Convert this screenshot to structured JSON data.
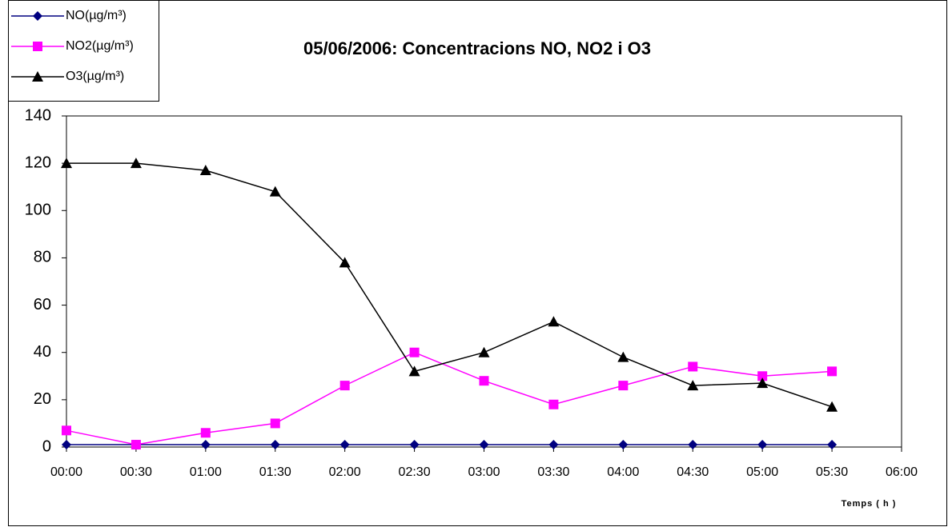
{
  "chart_data": {
    "type": "line",
    "title": "05/06/2006: Concentracions NO, NO2 i O3",
    "x_label": "Temps ( h )",
    "categories": [
      "00:00",
      "00:30",
      "01:00",
      "01:30",
      "02:00",
      "02:30",
      "03:00",
      "03:30",
      "04:00",
      "04:30",
      "05:00",
      "05:30",
      "06:00"
    ],
    "series": [
      {
        "name": "NO(µg/m³)",
        "color": "#000080",
        "marker": "diamond",
        "values": [
          1,
          1,
          1,
          1,
          1,
          1,
          1,
          1,
          1,
          1,
          1,
          1,
          null
        ]
      },
      {
        "name": "NO2(µg/m³)",
        "color": "#ff00ff",
        "marker": "square",
        "values": [
          7,
          1,
          6,
          10,
          26,
          40,
          28,
          18,
          26,
          34,
          30,
          32,
          null
        ]
      },
      {
        "name": "O3(µg/m³)",
        "color": "#000000",
        "marker": "triangle",
        "values": [
          120,
          120,
          117,
          108,
          78,
          32,
          40,
          53,
          38,
          26,
          27,
          17,
          null
        ]
      }
    ],
    "ylim": [
      0,
      140
    ],
    "yticks": [
      0,
      20,
      40,
      60,
      80,
      100,
      120,
      140
    ],
    "grid": false,
    "legend": "top-left"
  }
}
